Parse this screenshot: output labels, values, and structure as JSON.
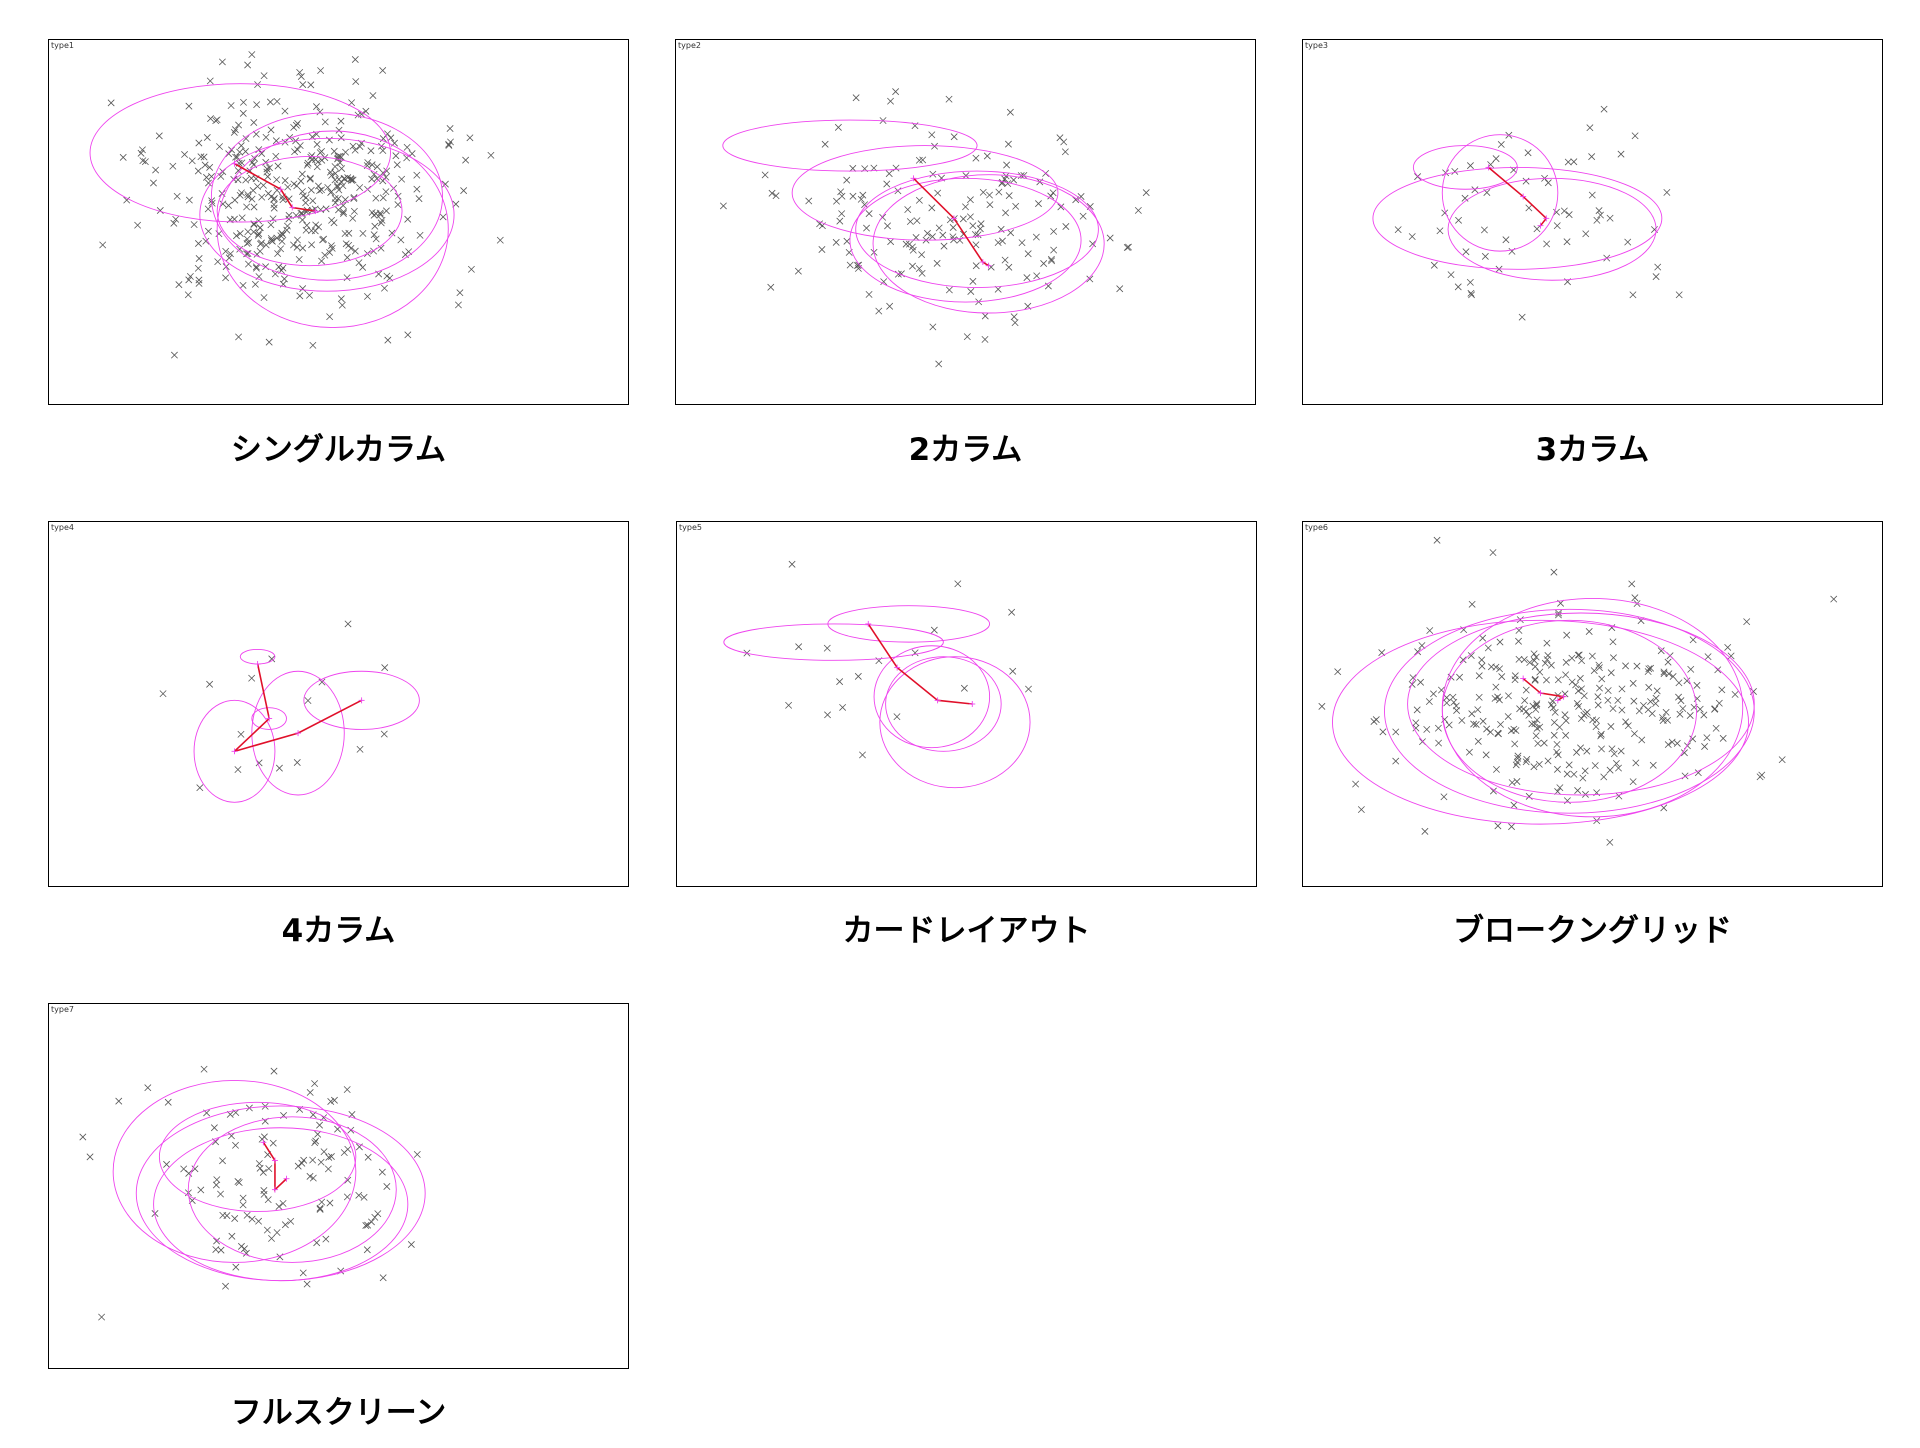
{
  "chart_data": [
    {
      "type": "scatter",
      "tag": "type1",
      "caption": "シングルカラム",
      "seed": 11,
      "n": 420,
      "cx": 0.43,
      "cy": 0.43,
      "sx": 0.12,
      "sy": 0.15,
      "path": [
        [
          0.32,
          0.34
        ],
        [
          0.4,
          0.41
        ],
        [
          0.42,
          0.46
        ],
        [
          0.46,
          0.47
        ]
      ],
      "ellipses": [
        [
          0.33,
          0.31,
          0.26,
          0.19
        ],
        [
          0.48,
          0.43,
          0.2,
          0.23
        ],
        [
          0.48,
          0.48,
          0.22,
          0.21
        ],
        [
          0.49,
          0.52,
          0.2,
          0.27
        ],
        [
          0.45,
          0.47,
          0.16,
          0.15
        ]
      ],
      "outliers": [
        [
          0.72,
          0.33
        ],
        [
          0.73,
          0.63
        ],
        [
          0.38,
          0.83
        ],
        [
          0.62,
          0.81
        ],
        [
          0.78,
          0.55
        ],
        [
          0.24,
          0.7
        ]
      ]
    },
    {
      "type": "scatter",
      "tag": "type2",
      "caption": "2カラム",
      "seed": 23,
      "n": 170,
      "cx": 0.46,
      "cy": 0.49,
      "sx": 0.14,
      "sy": 0.13,
      "path": [
        [
          0.41,
          0.38
        ],
        [
          0.48,
          0.49
        ],
        [
          0.53,
          0.61
        ],
        [
          0.54,
          0.62
        ]
      ],
      "ellipses": [
        [
          0.3,
          0.29,
          0.22,
          0.07
        ],
        [
          0.43,
          0.42,
          0.23,
          0.13
        ],
        [
          0.52,
          0.52,
          0.21,
          0.16
        ],
        [
          0.5,
          0.55,
          0.2,
          0.17
        ],
        [
          0.54,
          0.56,
          0.2,
          0.19
        ]
      ],
      "outliers": [
        [
          0.7,
          0.43
        ],
        [
          0.67,
          0.28
        ],
        [
          0.72,
          0.56
        ],
        [
          0.28,
          0.24
        ],
        [
          0.78,
          0.57
        ]
      ]
    },
    {
      "type": "scatter",
      "tag": "type3",
      "caption": "3カラム",
      "seed": 37,
      "n": 60,
      "cx": 0.4,
      "cy": 0.47,
      "sx": 0.1,
      "sy": 0.12,
      "path": [
        [
          0.32,
          0.35
        ],
        [
          0.38,
          0.43
        ],
        [
          0.42,
          0.49
        ],
        [
          0.41,
          0.51
        ]
      ],
      "ellipses": [
        [
          0.28,
          0.35,
          0.09,
          0.06
        ],
        [
          0.34,
          0.42,
          0.1,
          0.16
        ],
        [
          0.43,
          0.52,
          0.18,
          0.14
        ],
        [
          0.37,
          0.49,
          0.25,
          0.14
        ]
      ],
      "outliers": [
        [
          0.52,
          0.19
        ],
        [
          0.61,
          0.65
        ],
        [
          0.65,
          0.7
        ],
        [
          0.57,
          0.7
        ]
      ]
    },
    {
      "type": "scatter",
      "tag": "type4",
      "caption": "4カラム",
      "seed": 41,
      "n": 14,
      "cx": 0.38,
      "cy": 0.56,
      "sx": 0.12,
      "sy": 0.12,
      "path": [
        [
          0.36,
          0.39
        ],
        [
          0.38,
          0.54
        ],
        [
          0.32,
          0.63
        ],
        [
          0.43,
          0.58
        ],
        [
          0.54,
          0.49
        ]
      ],
      "ellipses": [
        [
          0.36,
          0.37,
          0.03,
          0.02
        ],
        [
          0.38,
          0.54,
          0.03,
          0.03
        ],
        [
          0.32,
          0.63,
          0.07,
          0.14
        ],
        [
          0.43,
          0.58,
          0.08,
          0.17
        ],
        [
          0.54,
          0.49,
          0.1,
          0.08
        ]
      ],
      "outliers": [
        [
          0.58,
          0.4
        ],
        [
          0.26,
          0.73
        ]
      ]
    },
    {
      "type": "scatter",
      "tag": "type5",
      "caption": "カードレイアウト",
      "seed": 53,
      "n": 16,
      "cx": 0.38,
      "cy": 0.45,
      "sx": 0.14,
      "sy": 0.14,
      "path": [
        [
          0.33,
          0.28
        ],
        [
          0.38,
          0.4
        ],
        [
          0.45,
          0.49
        ],
        [
          0.51,
          0.5
        ]
      ],
      "ellipses": [
        [
          0.27,
          0.33,
          0.19,
          0.05
        ],
        [
          0.4,
          0.28,
          0.14,
          0.05
        ],
        [
          0.44,
          0.48,
          0.1,
          0.14
        ],
        [
          0.46,
          0.5,
          0.1,
          0.13
        ],
        [
          0.48,
          0.55,
          0.13,
          0.18
        ]
      ],
      "outliers": [
        [
          0.12,
          0.36
        ],
        [
          0.58,
          0.41
        ],
        [
          0.32,
          0.64
        ]
      ]
    },
    {
      "type": "scatter",
      "tag": "type6",
      "caption": "ブロークングリッド",
      "seed": 67,
      "n": 300,
      "cx": 0.44,
      "cy": 0.49,
      "sx": 0.14,
      "sy": 0.13,
      "path": [
        [
          0.38,
          0.43
        ],
        [
          0.41,
          0.47
        ],
        [
          0.45,
          0.48
        ],
        [
          0.44,
          0.49
        ]
      ],
      "ellipses": [
        [
          0.41,
          0.55,
          0.36,
          0.28
        ],
        [
          0.46,
          0.52,
          0.32,
          0.28
        ],
        [
          0.48,
          0.5,
          0.3,
          0.25
        ],
        [
          0.5,
          0.51,
          0.26,
          0.3
        ],
        [
          0.46,
          0.52,
          0.22,
          0.25
        ]
      ],
      "outliers": [
        [
          0.09,
          0.72
        ],
        [
          0.1,
          0.79
        ],
        [
          0.21,
          0.85
        ],
        [
          0.53,
          0.88
        ],
        [
          0.79,
          0.7
        ],
        [
          0.7,
          0.37
        ]
      ]
    },
    {
      "type": "scatter",
      "tag": "type7",
      "caption": "フルスクリーン",
      "seed": 79,
      "n": 120,
      "cx": 0.4,
      "cy": 0.5,
      "sx": 0.11,
      "sy": 0.13,
      "path": [
        [
          0.37,
          0.38
        ],
        [
          0.39,
          0.43
        ],
        [
          0.39,
          0.51
        ],
        [
          0.41,
          0.48
        ]
      ],
      "ellipses": [
        [
          0.32,
          0.46,
          0.21,
          0.25
        ],
        [
          0.36,
          0.42,
          0.17,
          0.15
        ],
        [
          0.4,
          0.52,
          0.25,
          0.24
        ],
        [
          0.4,
          0.55,
          0.22,
          0.21
        ],
        [
          0.42,
          0.51,
          0.18,
          0.2
        ]
      ],
      "outliers": [
        [
          0.07,
          0.42
        ],
        [
          0.09,
          0.86
        ],
        [
          0.17,
          0.23
        ]
      ]
    }
  ]
}
